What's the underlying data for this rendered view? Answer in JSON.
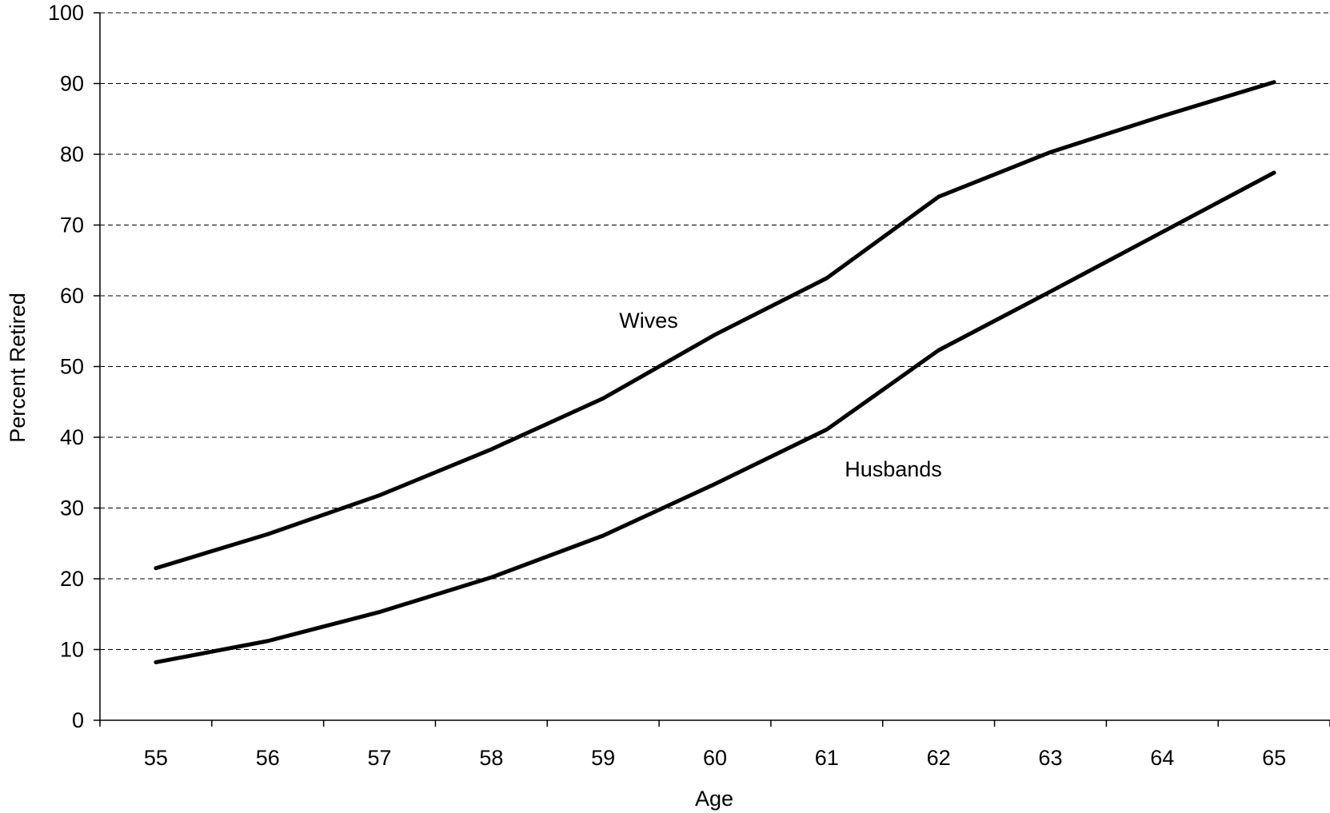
{
  "chart_data": {
    "type": "line",
    "title": "",
    "xlabel": "Age",
    "ylabel": "Percent Retired",
    "categories": [
      "55",
      "56",
      "57",
      "58",
      "59",
      "60",
      "61",
      "62",
      "63",
      "64",
      "65"
    ],
    "series": [
      {
        "name": "Wives",
        "values": [
          21.5,
          26.3,
          31.8,
          38.3,
          45.5,
          54.5,
          62.5,
          74.0,
          80.3,
          85.4,
          90.2
        ]
      },
      {
        "name": "Husbands",
        "values": [
          8.2,
          11.2,
          15.3,
          20.2,
          26.1,
          33.4,
          41.1,
          52.3,
          60.6,
          69.0,
          77.4
        ]
      }
    ],
    "ylim": [
      0,
      100
    ],
    "yticks": [
      0,
      10,
      20,
      30,
      40,
      50,
      60,
      70,
      80,
      90,
      100
    ],
    "grid": "horizontal dashed",
    "legend": "none",
    "annotations": [
      {
        "text": "Wives",
        "series": "Wives"
      },
      {
        "text": "Husbands",
        "series": "Husbands"
      }
    ],
    "line_color": "#000000"
  }
}
